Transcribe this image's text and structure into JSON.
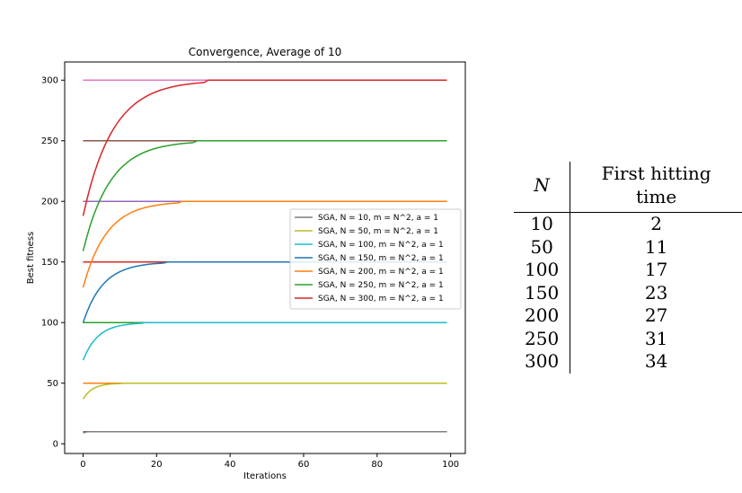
{
  "chart_data": {
    "type": "line",
    "title": "Convergence, Average of 10",
    "xlabel": "Iterations",
    "ylabel": "Best fitness",
    "xlim": [
      -5,
      104
    ],
    "ylim": [
      -8,
      315
    ],
    "xticks": [
      0,
      20,
      40,
      60,
      80,
      100
    ],
    "yticks": [
      0,
      50,
      100,
      150,
      200,
      250,
      300
    ],
    "grid": false,
    "legend_position": "center-right",
    "reference_lines": [
      {
        "y": 10,
        "color": "#8c564b"
      },
      {
        "y": 50,
        "color": "#ff7f0e"
      },
      {
        "y": 100,
        "color": "#2ca02c"
      },
      {
        "y": 150,
        "color": "#d62728"
      },
      {
        "y": 200,
        "color": "#9467bd"
      },
      {
        "y": 250,
        "color": "#8c564b"
      },
      {
        "y": 300,
        "color": "#e377c2"
      }
    ],
    "series": [
      {
        "name": "SGA, N = 10, m = N^2, a = 1",
        "color": "#7f7f7f",
        "start": 9,
        "final": 10,
        "first_hitting_time": 2
      },
      {
        "name": "SGA, N = 50, m = N^2, a = 1",
        "color": "#bcbd22",
        "start": 37,
        "final": 50,
        "first_hitting_time": 11
      },
      {
        "name": "SGA, N = 100, m = N^2, a = 1",
        "color": "#17becf",
        "start": 69,
        "final": 100,
        "first_hitting_time": 17
      },
      {
        "name": "SGA, N = 150, m = N^2, a = 1",
        "color": "#1f77b4",
        "start": 100,
        "final": 150,
        "first_hitting_time": 23
      },
      {
        "name": "SGA, N = 200, m = N^2, a = 1",
        "color": "#ff7f0e",
        "start": 129,
        "final": 200,
        "first_hitting_time": 27
      },
      {
        "name": "SGA, N = 250, m = N^2, a = 1",
        "color": "#2ca02c",
        "start": 159,
        "final": 250,
        "first_hitting_time": 31
      },
      {
        "name": "SGA, N = 300, m = N^2, a = 1",
        "color": "#d62728",
        "start": 188,
        "final": 300,
        "first_hitting_time": 34
      }
    ]
  },
  "table": {
    "headers": [
      "N",
      "First hitting time"
    ],
    "rows": [
      [
        "10",
        "2"
      ],
      [
        "50",
        "11"
      ],
      [
        "100",
        "17"
      ],
      [
        "150",
        "23"
      ],
      [
        "200",
        "27"
      ],
      [
        "250",
        "31"
      ],
      [
        "300",
        "34"
      ]
    ]
  }
}
